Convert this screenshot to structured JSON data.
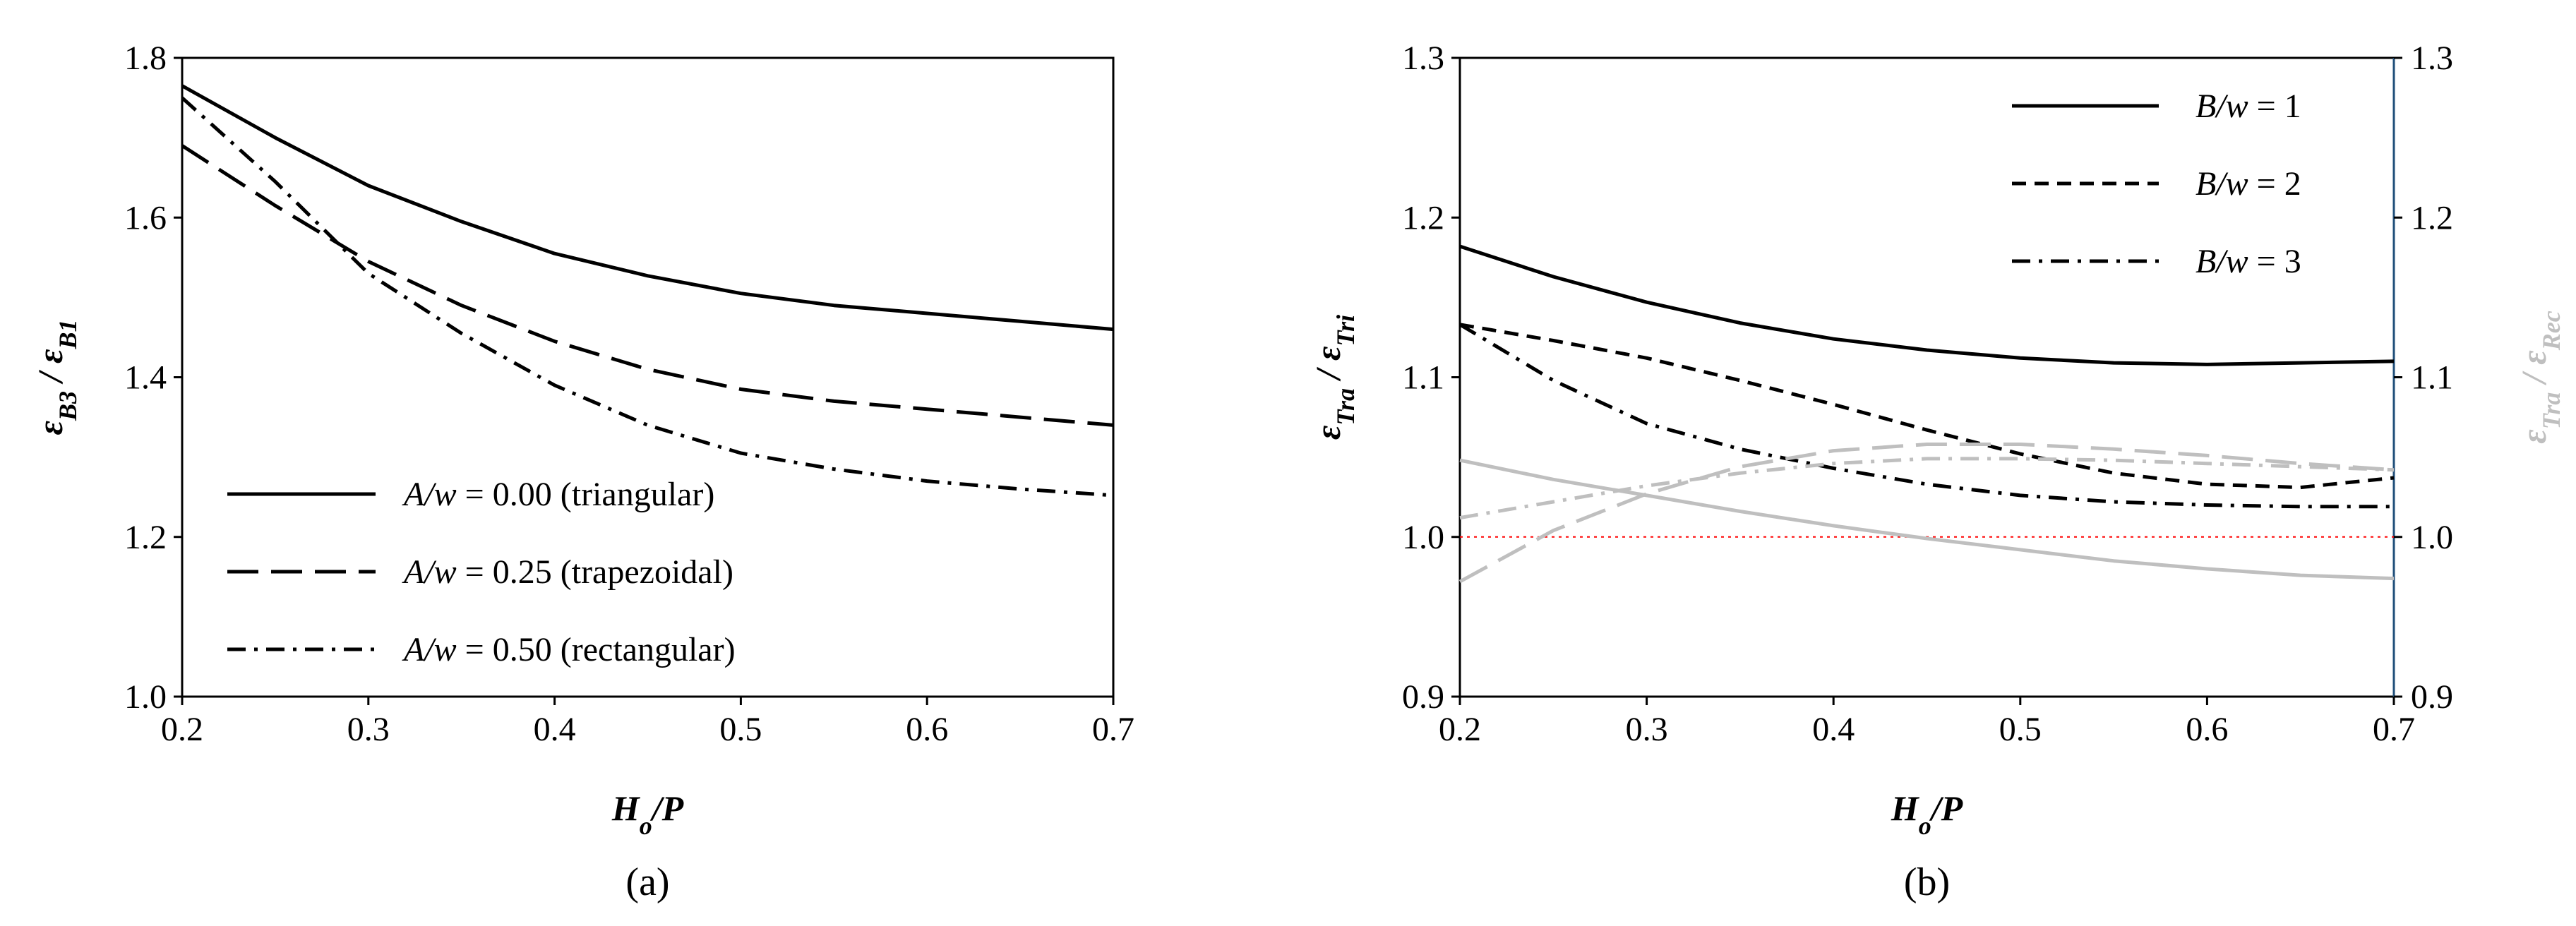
{
  "chart_data": [
    {
      "type": "line",
      "panel_label": "(a)",
      "ylabel_parts": [
        {
          "t": "ε",
          "sub": false
        },
        {
          "t": "B3",
          "sub": true
        },
        {
          "t": " / ",
          "sub": false
        },
        {
          "t": "ε",
          "sub": false
        },
        {
          "t": "B1",
          "sub": true
        }
      ],
      "xlabel_parts": [
        {
          "t": "H",
          "sub": false
        },
        {
          "t": "o",
          "sub": true
        },
        {
          "t": "/P",
          "sub": false
        }
      ],
      "xlim": [
        0.2,
        0.7
      ],
      "ylim": [
        1.0,
        1.8
      ],
      "x_ticks": [
        0.2,
        0.3,
        0.4,
        0.5,
        0.6,
        0.7
      ],
      "x_tick_labels": [
        "0.2",
        "0.3",
        "0.4",
        "0.5",
        "0.6",
        "0.7"
      ],
      "y_ticks": [
        1.0,
        1.2,
        1.4,
        1.6,
        1.8
      ],
      "y_tick_labels": [
        "1.0",
        "1.2",
        "1.4",
        "1.6",
        "1.8"
      ],
      "grid": false,
      "legend_position": "bottom-left",
      "series": [
        {
          "name": "A/w = 0.00 (triangular)",
          "legend_parts": [
            {
              "t": "A/w",
              "italic": true
            },
            {
              "t": " = 0.00 (triangular)",
              "italic": false
            }
          ],
          "style": "solid",
          "color": "#000000",
          "x": [
            0.2,
            0.25,
            0.3,
            0.35,
            0.4,
            0.45,
            0.5,
            0.55,
            0.6,
            0.65,
            0.7
          ],
          "y": [
            1.765,
            1.7,
            1.64,
            1.595,
            1.555,
            1.527,
            1.505,
            1.49,
            1.48,
            1.47,
            1.46
          ]
        },
        {
          "name": "A/w = 0.25 (trapezoidal)",
          "legend_parts": [
            {
              "t": "A/w",
              "italic": true
            },
            {
              "t": " = 0.25 (trapezoidal)",
              "italic": false
            }
          ],
          "style": "longdash",
          "color": "#000000",
          "x": [
            0.2,
            0.25,
            0.3,
            0.35,
            0.4,
            0.45,
            0.5,
            0.55,
            0.6,
            0.65,
            0.7
          ],
          "y": [
            1.69,
            1.615,
            1.545,
            1.49,
            1.445,
            1.41,
            1.385,
            1.37,
            1.36,
            1.35,
            1.34
          ]
        },
        {
          "name": "A/w = 0.50 (rectangular)",
          "legend_parts": [
            {
              "t": "A/w",
              "italic": true
            },
            {
              "t": " = 0.50 (rectangular)",
              "italic": false
            }
          ],
          "style": "dashdot",
          "color": "#000000",
          "x": [
            0.2,
            0.25,
            0.3,
            0.35,
            0.4,
            0.45,
            0.5,
            0.55,
            0.6,
            0.65,
            0.7
          ],
          "y": [
            1.75,
            1.645,
            1.53,
            1.455,
            1.39,
            1.34,
            1.305,
            1.285,
            1.27,
            1.26,
            1.252
          ]
        }
      ]
    },
    {
      "type": "line",
      "panel_label": "(b)",
      "ylabel_parts": [
        {
          "t": "ε",
          "sub": false
        },
        {
          "t": "Tra",
          "sub": true
        },
        {
          "t": " / ",
          "sub": false
        },
        {
          "t": "ε",
          "sub": false
        },
        {
          "t": "Tri",
          "sub": true
        }
      ],
      "ylabel2_parts": [
        {
          "t": "ε",
          "sub": false
        },
        {
          "t": "Tra",
          "sub": true
        },
        {
          "t": " / ",
          "sub": false
        },
        {
          "t": "ε",
          "sub": false
        },
        {
          "t": "Rec",
          "sub": true
        }
      ],
      "xlabel_parts": [
        {
          "t": "H",
          "sub": false
        },
        {
          "t": "o",
          "sub": true
        },
        {
          "t": "/P",
          "sub": false
        }
      ],
      "xlim": [
        0.2,
        0.7
      ],
      "ylim": [
        0.9,
        1.3
      ],
      "y2lim": [
        0.9,
        1.3
      ],
      "x_ticks": [
        0.2,
        0.3,
        0.4,
        0.5,
        0.6,
        0.7
      ],
      "x_tick_labels": [
        "0.2",
        "0.3",
        "0.4",
        "0.5",
        "0.6",
        "0.7"
      ],
      "y_ticks": [
        0.9,
        1.0,
        1.1,
        1.2,
        1.3
      ],
      "y_tick_labels": [
        "0.9",
        "1.0",
        "1.1",
        "1.2",
        "1.3"
      ],
      "y2_ticks": [
        0.9,
        1.0,
        1.1,
        1.2,
        1.3
      ],
      "y2_tick_labels": [
        "0.9",
        "1.0",
        "1.1",
        "1.2",
        "1.3"
      ],
      "grid": false,
      "legend_position": "top-right",
      "reference_line": {
        "y": 1.0,
        "color": "#ff0000",
        "style": "dotted"
      },
      "series": [
        {
          "name": "B/w = 1",
          "legend_parts": [
            {
              "t": "B/w",
              "italic": true
            },
            {
              "t": " = 1",
              "italic": false
            }
          ],
          "style": "solid",
          "color": "#000000",
          "axis": "left",
          "in_legend": true,
          "x": [
            0.2,
            0.25,
            0.3,
            0.35,
            0.4,
            0.45,
            0.5,
            0.55,
            0.6,
            0.65,
            0.7
          ],
          "y": [
            1.182,
            1.163,
            1.147,
            1.134,
            1.124,
            1.117,
            1.112,
            1.109,
            1.108,
            1.109,
            1.11
          ]
        },
        {
          "name": "B/w = 2",
          "legend_parts": [
            {
              "t": "B/w",
              "italic": true
            },
            {
              "t": " = 2",
              "italic": false
            }
          ],
          "style": "dashed",
          "color": "#000000",
          "axis": "left",
          "in_legend": true,
          "x": [
            0.2,
            0.25,
            0.3,
            0.35,
            0.4,
            0.45,
            0.5,
            0.55,
            0.6,
            0.65,
            0.7
          ],
          "y": [
            1.133,
            1.123,
            1.112,
            1.098,
            1.083,
            1.067,
            1.052,
            1.04,
            1.033,
            1.031,
            1.037
          ]
        },
        {
          "name": "B/w = 3",
          "legend_parts": [
            {
              "t": "B/w",
              "italic": true
            },
            {
              "t": " = 3",
              "italic": false
            }
          ],
          "style": "dashdot",
          "color": "#000000",
          "axis": "left",
          "in_legend": true,
          "x": [
            0.2,
            0.25,
            0.3,
            0.35,
            0.4,
            0.45,
            0.5,
            0.55,
            0.6,
            0.65,
            0.7
          ],
          "y": [
            1.133,
            1.098,
            1.071,
            1.055,
            1.043,
            1.033,
            1.026,
            1.022,
            1.02,
            1.019,
            1.019
          ]
        },
        {
          "style": "solid",
          "color": "#bfbfbf",
          "axis": "right",
          "in_legend": false,
          "x": [
            0.2,
            0.25,
            0.3,
            0.35,
            0.4,
            0.45,
            0.5,
            0.55,
            0.6,
            0.65,
            0.7
          ],
          "y": [
            1.048,
            1.036,
            1.026,
            1.016,
            1.007,
            0.999,
            0.992,
            0.985,
            0.98,
            0.976,
            0.974
          ]
        },
        {
          "style": "longdash",
          "color": "#bfbfbf",
          "axis": "right",
          "in_legend": false,
          "x": [
            0.2,
            0.25,
            0.3,
            0.35,
            0.4,
            0.45,
            0.5,
            0.55,
            0.6,
            0.65,
            0.7
          ],
          "y": [
            0.972,
            1.004,
            1.027,
            1.044,
            1.054,
            1.058,
            1.058,
            1.055,
            1.051,
            1.046,
            1.042
          ]
        },
        {
          "style": "dashdot",
          "color": "#bfbfbf",
          "axis": "right",
          "in_legend": false,
          "x": [
            0.2,
            0.25,
            0.3,
            0.35,
            0.4,
            0.45,
            0.5,
            0.55,
            0.6,
            0.65,
            0.7
          ],
          "y": [
            1.012,
            1.022,
            1.032,
            1.04,
            1.046,
            1.049,
            1.049,
            1.048,
            1.046,
            1.044,
            1.042
          ]
        }
      ]
    }
  ]
}
